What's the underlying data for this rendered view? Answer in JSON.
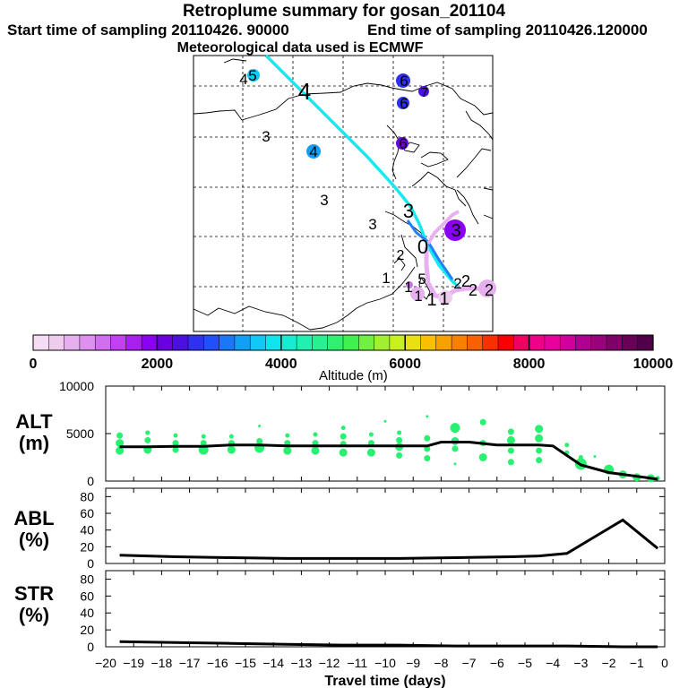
{
  "header": {
    "title": "Retroplume summary for gosan_201104",
    "start_label": "Start time of sampling 20110426. 90000",
    "end_label": "End time of sampling 20110426.120000",
    "met_label": "Meteorological data used is ECMWF"
  },
  "colorbar": {
    "ticks": [
      "0",
      "2000",
      "4000",
      "6000",
      "8000",
      "10000"
    ],
    "label": "Altitude (m)",
    "colors": [
      "#f4ddf4",
      "#eeccee",
      "#e6b0ee",
      "#dd90ee",
      "#d070f0",
      "#c040f2",
      "#a820f0",
      "#8a00f0",
      "#6a00e0",
      "#4a10e0",
      "#3030f0",
      "#2050f8",
      "#1a78f8",
      "#10a0f8",
      "#10c8f4",
      "#10e4ec",
      "#18ecd0",
      "#20f0b0",
      "#28f090",
      "#30f070",
      "#40f050",
      "#70f040",
      "#a0f030",
      "#c8f020",
      "#e8e010",
      "#f8c000",
      "#f8a000",
      "#f88000",
      "#f86000",
      "#f83000",
      "#f80000",
      "#f00060",
      "#f00088",
      "#e8009c",
      "#d0009c",
      "#b00090",
      "#98007c",
      "#800068",
      "#680058",
      "#500048"
    ]
  },
  "map": {
    "numbers": [
      {
        "t": "4",
        "c": "#10e4ec"
      },
      {
        "t": "5",
        "c": "#10e4ec"
      },
      {
        "t": "4",
        "c": "#10e4ec"
      },
      {
        "t": "3",
        "c": "#10e4ec"
      },
      {
        "t": "4",
        "c": "#10a0f8"
      },
      {
        "t": "3",
        "c": "#10e4ec"
      },
      {
        "t": "3",
        "c": "#10e4ec"
      },
      {
        "t": "6",
        "c": "#3030f0"
      },
      {
        "t": "7",
        "c": "#4a10e0"
      },
      {
        "t": "6",
        "c": "#3030f0"
      },
      {
        "t": "6",
        "c": "#6a00e0"
      },
      {
        "t": "3",
        "c": "#6a00e0"
      },
      {
        "t": "3",
        "c": "#10c8f4"
      },
      {
        "t": "0",
        "c": "#10c8f4"
      },
      {
        "t": "2",
        "c": "#10c8f4"
      },
      {
        "t": "1",
        "c": "#d070f0"
      },
      {
        "t": "1",
        "c": "#e6b0ee"
      },
      {
        "t": "5",
        "c": "#4a10e0"
      },
      {
        "t": "1",
        "c": "#a820f0"
      },
      {
        "t": "1",
        "c": "#e6b0ee"
      },
      {
        "t": "2",
        "c": "#dd90ee"
      },
      {
        "t": "1",
        "c": "#eeccee"
      },
      {
        "t": "2",
        "c": "#c040f2"
      },
      {
        "t": "2",
        "c": "#dd90ee"
      },
      {
        "t": "2",
        "c": "#e6b0ee"
      }
    ]
  },
  "panels": {
    "alt": {
      "label1": "ALT",
      "label2": "(m)",
      "yticks": [
        "0",
        "5000",
        "10000"
      ]
    },
    "abl": {
      "label1": "ABL",
      "label2": "(%)",
      "yticks": [
        "0",
        "20",
        "40",
        "60",
        "80"
      ]
    },
    "str": {
      "label1": "STR",
      "label2": "(%)",
      "yticks": [
        "0",
        "20",
        "40",
        "60",
        "80"
      ]
    }
  },
  "chart_data": [
    {
      "type": "line",
      "title": "ALT (m)",
      "xlabel": "Travel time (days)",
      "ylabel": "ALT (m)",
      "xlim": [
        -20,
        0
      ],
      "ylim": [
        0,
        10000
      ],
      "x": [
        -19.5,
        -18.5,
        -17.5,
        -16.5,
        -15.5,
        -14.5,
        -13.5,
        -12.5,
        -11.5,
        -10.5,
        -9.5,
        -8.5,
        -8,
        -7,
        -6,
        -5,
        -4.5,
        -4,
        -3,
        -2,
        -1,
        -0.25
      ],
      "series": [
        {
          "name": "median altitude",
          "values": [
            3600,
            3600,
            3650,
            3650,
            3800,
            3800,
            3700,
            3700,
            3700,
            3700,
            3700,
            3700,
            4100,
            4100,
            3800,
            3800,
            3800,
            3700,
            1700,
            900,
            500,
            200
          ]
        }
      ],
      "scatter": [
        {
          "x": -19.5,
          "y": 4000,
          "s": 4
        },
        {
          "x": -19.5,
          "y": 3200,
          "s": 4
        },
        {
          "x": -19.5,
          "y": 4800,
          "s": 3
        },
        {
          "x": -18.5,
          "y": 3300,
          "s": 4
        },
        {
          "x": -18.5,
          "y": 4300,
          "s": 3
        },
        {
          "x": -18.5,
          "y": 5100,
          "s": 2
        },
        {
          "x": -17.5,
          "y": 3300,
          "s": 3
        },
        {
          "x": -17.5,
          "y": 4000,
          "s": 3
        },
        {
          "x": -17.5,
          "y": 4800,
          "s": 2
        },
        {
          "x": -16.5,
          "y": 3300,
          "s": 5
        },
        {
          "x": -16.5,
          "y": 4000,
          "s": 3
        },
        {
          "x": -16.5,
          "y": 4700,
          "s": 2
        },
        {
          "x": -15.5,
          "y": 3300,
          "s": 4
        },
        {
          "x": -15.5,
          "y": 4000,
          "s": 3
        },
        {
          "x": -15.5,
          "y": 4700,
          "s": 2
        },
        {
          "x": -14.5,
          "y": 3500,
          "s": 5
        },
        {
          "x": -14.5,
          "y": 4200,
          "s": 3
        },
        {
          "x": -14.5,
          "y": 5800,
          "s": 1
        },
        {
          "x": -13.5,
          "y": 3200,
          "s": 4
        },
        {
          "x": -13.5,
          "y": 4000,
          "s": 3
        },
        {
          "x": -13.5,
          "y": 4800,
          "s": 2
        },
        {
          "x": -12.5,
          "y": 3200,
          "s": 4
        },
        {
          "x": -12.5,
          "y": 4000,
          "s": 3
        },
        {
          "x": -12.5,
          "y": 4900,
          "s": 2
        },
        {
          "x": -11.5,
          "y": 3000,
          "s": 4
        },
        {
          "x": -11.5,
          "y": 3900,
          "s": 3
        },
        {
          "x": -11.5,
          "y": 4700,
          "s": 3
        },
        {
          "x": -11.5,
          "y": 5600,
          "s": 2
        },
        {
          "x": -10.5,
          "y": 3000,
          "s": 4
        },
        {
          "x": -10.5,
          "y": 4000,
          "s": 3
        },
        {
          "x": -10.5,
          "y": 4900,
          "s": 2
        },
        {
          "x": -10,
          "y": 6300,
          "s": 1
        },
        {
          "x": -9.5,
          "y": 2700,
          "s": 3
        },
        {
          "x": -9.5,
          "y": 3600,
          "s": 4
        },
        {
          "x": -9.5,
          "y": 4300,
          "s": 3
        },
        {
          "x": -9.5,
          "y": 5100,
          "s": 2
        },
        {
          "x": -8.5,
          "y": 2400,
          "s": 3
        },
        {
          "x": -8.5,
          "y": 3400,
          "s": 3
        },
        {
          "x": -8.5,
          "y": 4500,
          "s": 3
        },
        {
          "x": -8.5,
          "y": 6800,
          "s": 1
        },
        {
          "x": -7.5,
          "y": 1800,
          "s": 1
        },
        {
          "x": -7.5,
          "y": 3400,
          "s": 3
        },
        {
          "x": -7.5,
          "y": 4200,
          "s": 4
        },
        {
          "x": -7.5,
          "y": 5600,
          "s": 5
        },
        {
          "x": -6.5,
          "y": 2500,
          "s": 4
        },
        {
          "x": -6.5,
          "y": 4000,
          "s": 3
        },
        {
          "x": -6.5,
          "y": 6200,
          "s": 3
        },
        {
          "x": -5.5,
          "y": 2000,
          "s": 3
        },
        {
          "x": -5.5,
          "y": 3200,
          "s": 3
        },
        {
          "x": -5.5,
          "y": 4300,
          "s": 4
        },
        {
          "x": -5.5,
          "y": 5200,
          "s": 3
        },
        {
          "x": -4.5,
          "y": 2200,
          "s": 3
        },
        {
          "x": -4.5,
          "y": 3200,
          "s": 3
        },
        {
          "x": -4.5,
          "y": 4500,
          "s": 4
        },
        {
          "x": -4.5,
          "y": 5500,
          "s": 4
        },
        {
          "x": -3.5,
          "y": 3800,
          "s": 2
        },
        {
          "x": -3.5,
          "y": 3000,
          "s": 2
        },
        {
          "x": -3,
          "y": 1800,
          "s": 6
        },
        {
          "x": -3,
          "y": 2500,
          "s": 2
        },
        {
          "x": -2.5,
          "y": 2600,
          "s": 1
        },
        {
          "x": -2,
          "y": 1200,
          "s": 5
        },
        {
          "x": -1.5,
          "y": 700,
          "s": 4
        },
        {
          "x": -1,
          "y": 400,
          "s": 4
        },
        {
          "x": -0.5,
          "y": 300,
          "s": 4
        },
        {
          "x": -0.25,
          "y": 300,
          "s": 2
        }
      ]
    },
    {
      "type": "line",
      "title": "ABL (%)",
      "xlabel": "Travel time (days)",
      "ylabel": "ABL (%)",
      "xlim": [
        -20,
        0
      ],
      "ylim": [
        0,
        90
      ],
      "x": [
        -19.5,
        -17.5,
        -15.5,
        -13.5,
        -11.5,
        -9.5,
        -7.5,
        -5.5,
        -4.5,
        -3.5,
        -2.5,
        -1.5,
        -0.25
      ],
      "series": [
        {
          "name": "ABL fraction",
          "values": [
            10,
            8,
            7,
            6,
            6,
            6,
            7,
            8,
            9,
            12,
            32,
            52,
            18
          ]
        }
      ]
    },
    {
      "type": "line",
      "title": "STR (%)",
      "xlabel": "Travel time (days)",
      "ylabel": "STR (%)",
      "xlim": [
        -20,
        0
      ],
      "ylim": [
        0,
        90
      ],
      "x": [
        -19.5,
        -17.5,
        -15.5,
        -13.5,
        -11.5,
        -9.5,
        -7.5,
        -5.5,
        -3.5,
        -1.5,
        -0.25
      ],
      "series": [
        {
          "name": "STR fraction",
          "values": [
            6,
            5,
            4,
            3,
            2,
            2,
            1,
            1,
            1,
            0,
            0
          ]
        }
      ]
    }
  ],
  "xaxis": {
    "ticks": [
      "−20",
      "−19",
      "−18",
      "−17",
      "−16",
      "−15",
      "−14",
      "−13",
      "−12",
      "−11",
      "−10",
      "−9",
      "−8",
      "−7",
      "−6",
      "−5",
      "−4",
      "−3",
      "−2",
      "−1",
      "0"
    ],
    "label": "Travel time (days)"
  }
}
